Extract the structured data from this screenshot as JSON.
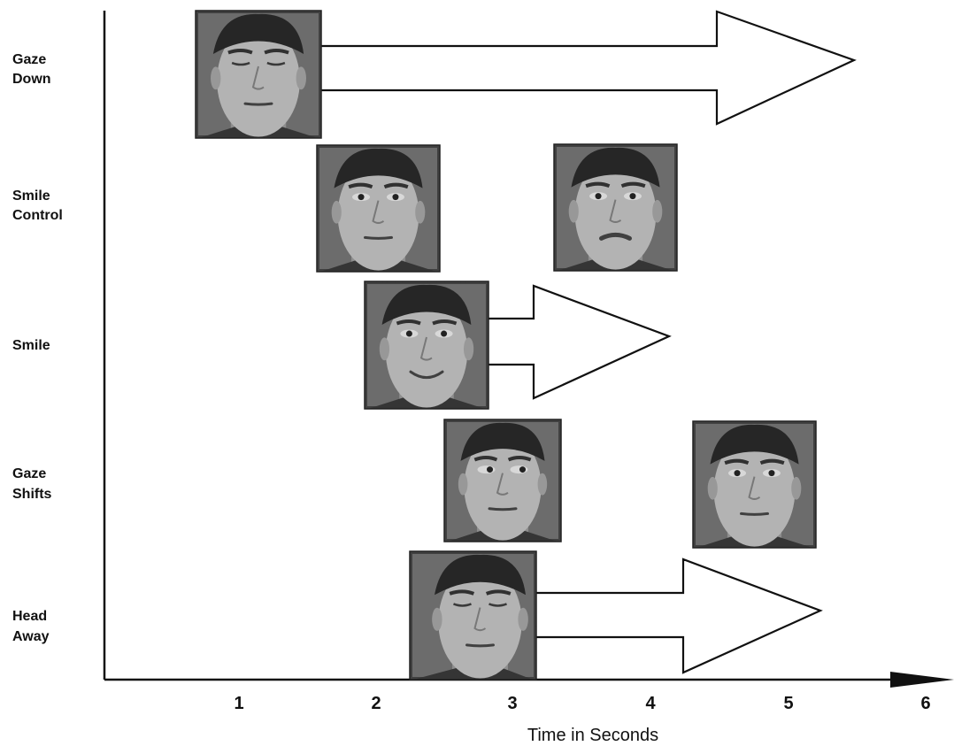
{
  "rows": [
    {
      "label_line1": "Gaze",
      "label_line2": "Down"
    },
    {
      "label_line1": "Smile",
      "label_line2": "Control"
    },
    {
      "label_line1": "Smile",
      "label_line2": ""
    },
    {
      "label_line1": "Gaze",
      "label_line2": "Shifts"
    },
    {
      "label_line1": "Head",
      "label_line2": "Away"
    }
  ],
  "x_axis": {
    "title": "Time in Seconds",
    "ticks": [
      "1",
      "2",
      "3",
      "4",
      "5",
      "6"
    ]
  },
  "faces": [
    {
      "row": "Gaze Down",
      "expression": "eyes-closed-downcast"
    },
    {
      "row": "Smile Control",
      "expression": "neutral"
    },
    {
      "row": "Smile Control",
      "expression": "pressed-lips"
    },
    {
      "row": "Smile",
      "expression": "smiling"
    },
    {
      "row": "Gaze Shifts",
      "expression": "eyes-right"
    },
    {
      "row": "Gaze Shifts",
      "expression": "eyes-forward"
    },
    {
      "row": "Head Away",
      "expression": "head-turned-down"
    }
  ],
  "arrows": [
    {
      "row": "Gaze Down"
    },
    {
      "row": "Smile"
    },
    {
      "row": "Head Away"
    }
  ]
}
